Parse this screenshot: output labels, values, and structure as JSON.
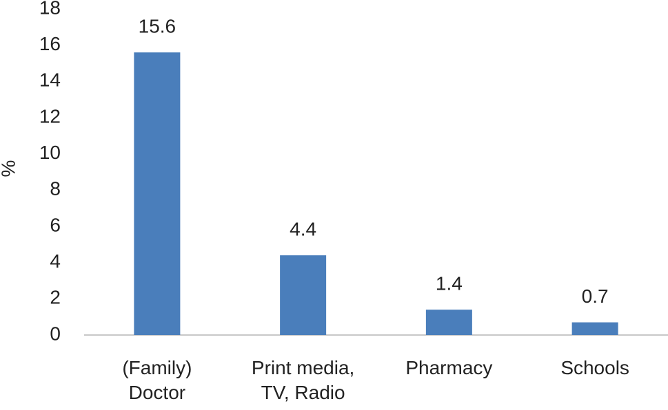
{
  "chart_data": {
    "type": "bar",
    "y_label": "%",
    "categories": [
      "(Family) Doctor",
      "Print media, TV, Radio",
      "Pharmacy",
      "Schools"
    ],
    "values": [
      15.6,
      4.4,
      1.4,
      0.7
    ],
    "color": "#4a7ebb",
    "ylim": [
      0,
      18
    ],
    "yticks": [
      0,
      2,
      4,
      6,
      8,
      10,
      12,
      14,
      16,
      18
    ],
    "grid": false
  }
}
